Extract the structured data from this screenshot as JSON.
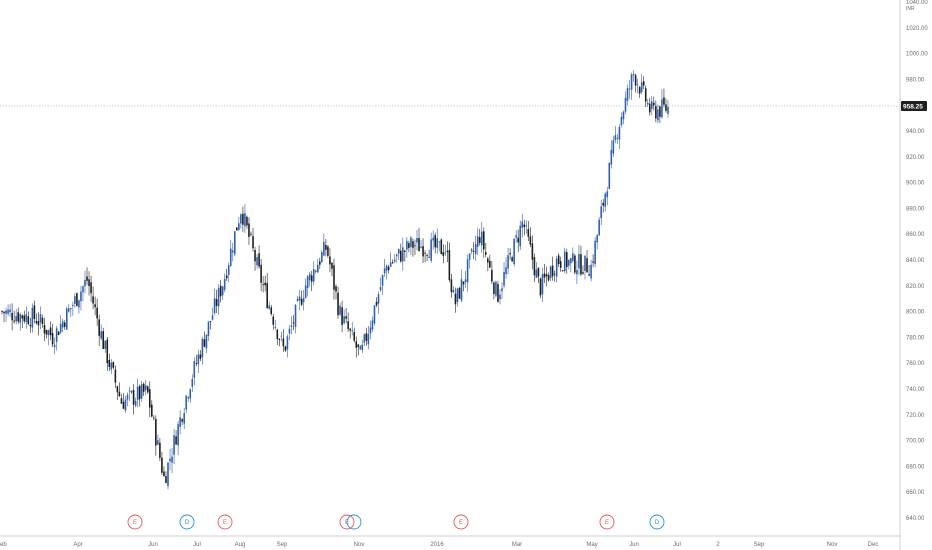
{
  "currency": "INR",
  "current_price": "958.25",
  "colors": {
    "up": "#2f5fb0",
    "down": "#1e1e1e",
    "earnings": "#e05a5a",
    "dividend": "#2a8fd8"
  },
  "chart_data": {
    "type": "candlestick",
    "y_ticks": [
      "1040.00",
      "1020.00",
      "1000.00",
      "980.00",
      "960.00",
      "940.00",
      "920.00",
      "900.00",
      "880.00",
      "860.00",
      "840.00",
      "820.00",
      "800.00",
      "780.00",
      "760.00",
      "740.00",
      "720.00",
      "700.00",
      "680.00",
      "660.00",
      "640.00"
    ],
    "ylim": [
      640,
      1040
    ],
    "x_ticks": [
      "eb",
      "Apr",
      "Jun",
      "Jul",
      "Aug",
      "Sep",
      "Nov",
      "2016",
      "Mar",
      "May",
      "Jun",
      "Jul",
      "2",
      "Sep",
      "Nov",
      "Dec"
    ],
    "current_price_value": 958.25,
    "events": [
      "E",
      "D",
      "E",
      "E",
      "E",
      "E",
      "D"
    ],
    "price_path": [
      {
        "t": 0,
        "v": 800
      },
      {
        "t": 0.04,
        "v": 795
      },
      {
        "t": 0.06,
        "v": 780
      },
      {
        "t": 0.1,
        "v": 825
      },
      {
        "t": 0.12,
        "v": 772
      },
      {
        "t": 0.14,
        "v": 730
      },
      {
        "t": 0.17,
        "v": 738
      },
      {
        "t": 0.19,
        "v": 670
      },
      {
        "t": 0.22,
        "v": 745
      },
      {
        "t": 0.26,
        "v": 825
      },
      {
        "t": 0.28,
        "v": 880
      },
      {
        "t": 0.3,
        "v": 832
      },
      {
        "t": 0.33,
        "v": 770
      },
      {
        "t": 0.355,
        "v": 820
      },
      {
        "t": 0.38,
        "v": 850
      },
      {
        "t": 0.395,
        "v": 800
      },
      {
        "t": 0.42,
        "v": 765
      },
      {
        "t": 0.45,
        "v": 835
      },
      {
        "t": 0.48,
        "v": 852
      },
      {
        "t": 0.52,
        "v": 848
      },
      {
        "t": 0.53,
        "v": 805
      },
      {
        "t": 0.56,
        "v": 860
      },
      {
        "t": 0.58,
        "v": 812
      },
      {
        "t": 0.61,
        "v": 870
      },
      {
        "t": 0.63,
        "v": 818
      },
      {
        "t": 0.65,
        "v": 840
      },
      {
        "t": 0.69,
        "v": 835
      },
      {
        "t": 0.72,
        "v": 940
      },
      {
        "t": 0.74,
        "v": 985
      },
      {
        "t": 0.76,
        "v": 955
      },
      {
        "t": 0.78,
        "v": 958
      }
    ]
  }
}
